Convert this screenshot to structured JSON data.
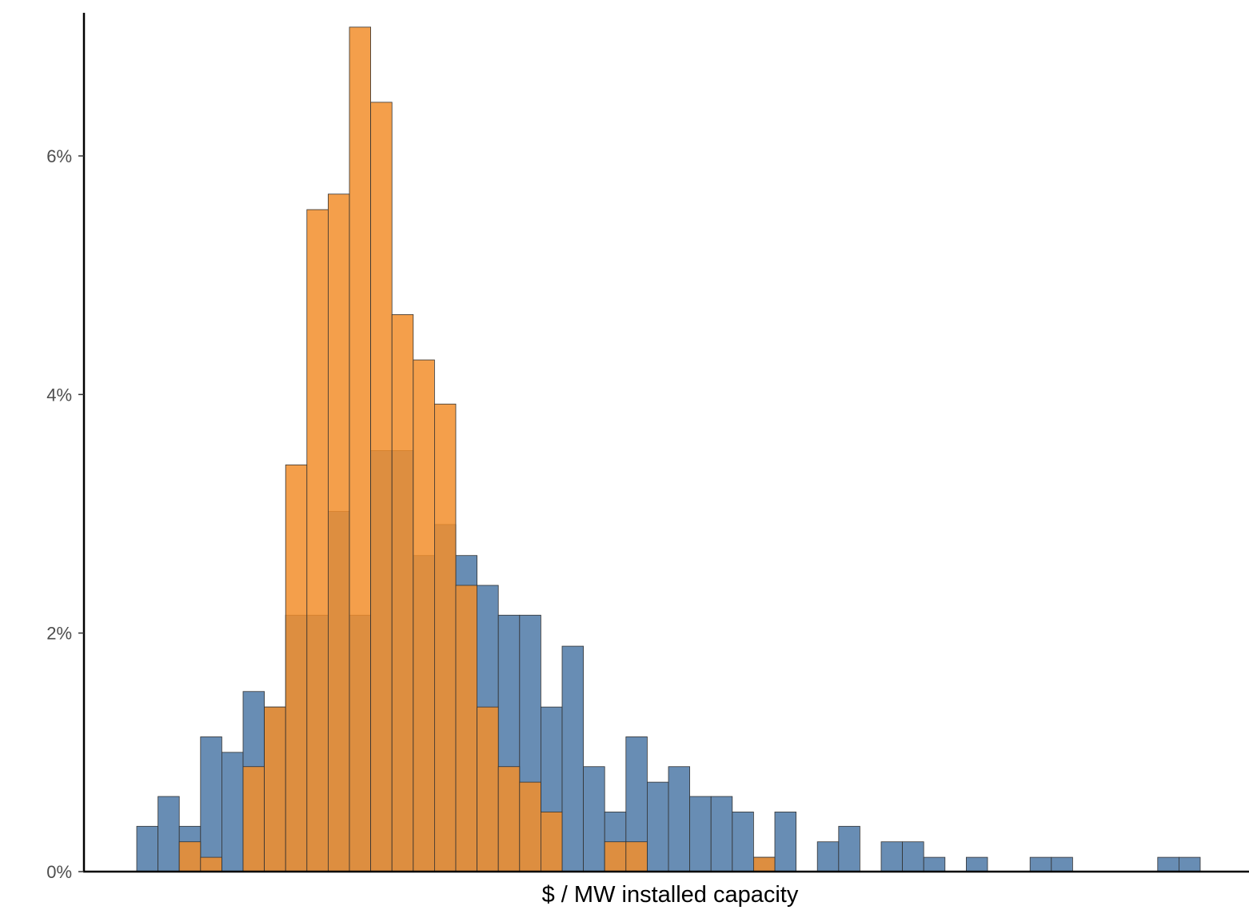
{
  "chart_data": {
    "type": "bar",
    "subtype": "overlapping-histogram",
    "title": "",
    "xlabel": "$ / MW installed capacity",
    "ylabel": "",
    "ylim": [
      0,
      7.2
    ],
    "y_ticks": [
      0,
      2,
      4,
      6
    ],
    "y_tick_labels": [
      "0%",
      "2%",
      "4%",
      "6%"
    ],
    "x_tick_labels": [],
    "grid": false,
    "legend": "none",
    "bin_count": 50,
    "series": [
      {
        "color": "#4e79a7",
        "opacity": 0.85,
        "values": [
          0.38,
          0.63,
          0.38,
          1.13,
          1.0,
          1.51,
          1.38,
          2.15,
          2.15,
          3.02,
          2.15,
          3.53,
          3.53,
          2.65,
          2.91,
          2.65,
          2.4,
          2.15,
          2.15,
          1.38,
          1.89,
          0.88,
          0.5,
          1.13,
          0.75,
          0.88,
          0.63,
          0.63,
          0.5,
          0.12,
          0.5,
          0,
          0.25,
          0.38,
          0,
          0.25,
          0.25,
          0.12,
          0,
          0.12,
          0,
          0,
          0.12,
          0.12,
          0,
          0,
          0,
          0,
          0.12,
          0.12
        ]
      },
      {
        "color": "#f28e2b",
        "opacity": 0.85,
        "values": [
          0,
          0,
          0.25,
          0.12,
          0,
          0.88,
          1.38,
          3.41,
          5.55,
          5.68,
          7.08,
          6.45,
          4.67,
          4.29,
          3.92,
          2.4,
          1.38,
          0.88,
          0.75,
          0.5,
          0,
          0,
          0.25,
          0.25,
          0,
          0,
          0,
          0,
          0,
          0.12,
          0,
          0,
          0,
          0,
          0,
          0,
          0,
          0,
          0,
          0,
          0,
          0,
          0,
          0,
          0,
          0,
          0,
          0,
          0,
          0
        ]
      }
    ]
  }
}
